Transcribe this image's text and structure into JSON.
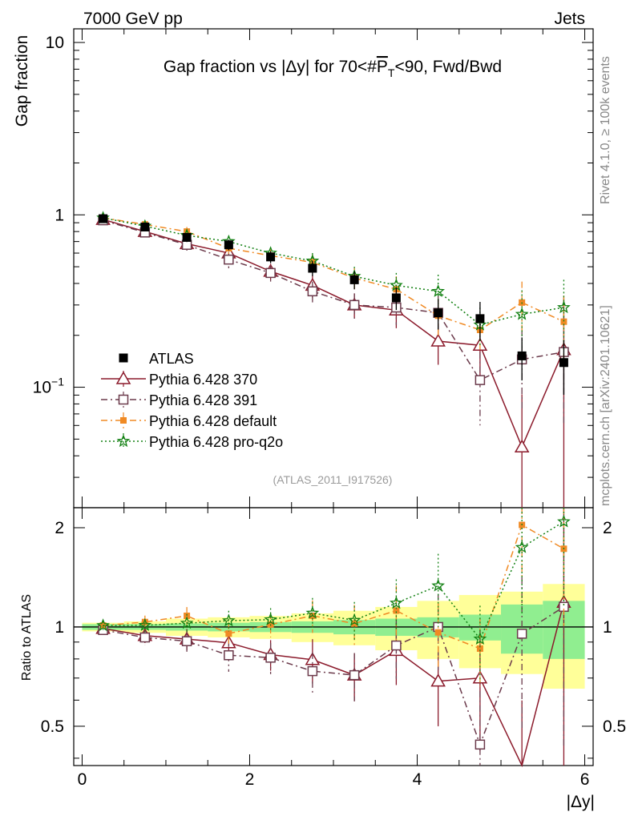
{
  "header": {
    "left": "7000 GeV pp",
    "right": "Jets"
  },
  "side_labels": {
    "rivet": "Rivet 4.1.0, ≥ 100k events",
    "mcplots": "mcplots.cern.ch [arXiv:2401.10621]"
  },
  "chart_data": {
    "type": "scatter",
    "title": "Gap fraction vs |Δy| for 70<#P̅T<90, Fwd/Bwd",
    "title_parts": {
      "pre": "Gap fraction vs |Δy| for 70<#",
      "pbar": "P",
      "sub": "T",
      "post": "<90, Fwd/Bwd"
    },
    "analysis_id": "(ATLAS_2011_I917526)",
    "xlabel": "|Δy|",
    "ylabel_main": "Gap fraction",
    "ylabel_ratio": "Ratio to ATLAS",
    "xlim": [
      -0.1,
      6.1
    ],
    "ylim_main": [
      0.02,
      12
    ],
    "ylim_ratio": [
      0.38,
      2.3
    ],
    "yscale": "log",
    "x_ticks": [
      "0",
      "2",
      "4",
      "6"
    ],
    "y_ticks_main": [
      "1",
      "10"
    ],
    "y_ticks_main_exp": [
      {
        "base": "10",
        "exp": "−1"
      }
    ],
    "y_ticks_ratio": [
      "0.5",
      "1",
      "2"
    ],
    "x": [
      0.25,
      0.75,
      1.25,
      1.75,
      2.25,
      2.75,
      3.25,
      3.75,
      4.25,
      4.75,
      5.25,
      5.75
    ],
    "x_edges": [
      0,
      0.5,
      1,
      1.5,
      2,
      2.5,
      3,
      3.5,
      4,
      4.5,
      5,
      5.5,
      6
    ],
    "data": {
      "name": "ATLAS",
      "values": [
        0.95,
        0.85,
        0.74,
        0.67,
        0.57,
        0.49,
        0.42,
        0.33,
        0.27,
        0.25,
        0.152,
        0.139
      ],
      "rel_err_stat": [
        0.02,
        0.02,
        0.025,
        0.03,
        0.035,
        0.04,
        0.05,
        0.06,
        0.07,
        0.09,
        0.17,
        0.2
      ],
      "rel_err_total": [
        0.03,
        0.04,
        0.06,
        0.07,
        0.08,
        0.1,
        0.12,
        0.15,
        0.2,
        0.25,
        0.28,
        0.35
      ]
    },
    "series": [
      {
        "name": "Pythia 6.428 370",
        "color": "#8b1a2b",
        "line": "solid",
        "marker": "triangle-open",
        "values": [
          0.94,
          0.8,
          0.68,
          0.6,
          0.47,
          0.39,
          0.3,
          0.28,
          0.185,
          0.175,
          0.045,
          0.165
        ],
        "errors": [
          0.03,
          0.04,
          0.05,
          0.05,
          0.05,
          0.06,
          0.05,
          0.06,
          0.05,
          0.07,
          0.046,
          0.165
        ]
      },
      {
        "name": "Pythia 6.428 391",
        "color": "#6b3a4b",
        "line": "dashdot",
        "marker": "square-open",
        "values": [
          0.93,
          0.79,
          0.67,
          0.55,
          0.46,
          0.36,
          0.3,
          0.29,
          0.27,
          0.11,
          0.145,
          0.16
        ],
        "errors": [
          0.03,
          0.04,
          0.05,
          0.06,
          0.05,
          0.05,
          0.05,
          0.06,
          0.07,
          0.05,
          0.07,
          0.1
        ]
      },
      {
        "name": "Pythia 6.428 default",
        "color": "#f08a24",
        "line": "dashdot",
        "marker": "square-filled",
        "values": [
          0.96,
          0.88,
          0.8,
          0.64,
          0.58,
          0.53,
          0.43,
          0.37,
          0.26,
          0.215,
          0.31,
          0.24
        ],
        "errors": [
          0.03,
          0.04,
          0.05,
          0.05,
          0.05,
          0.06,
          0.06,
          0.07,
          0.06,
          0.05,
          0.1,
          0.1
        ]
      },
      {
        "name": "Pythia 6.428 pro-q2o",
        "color": "#128012",
        "line": "dotted",
        "marker": "star",
        "values": [
          0.96,
          0.86,
          0.76,
          0.7,
          0.6,
          0.54,
          0.44,
          0.39,
          0.36,
          0.23,
          0.265,
          0.29
        ],
        "errors": [
          0.03,
          0.04,
          0.05,
          0.05,
          0.05,
          0.06,
          0.06,
          0.07,
          0.09,
          0.06,
          0.1,
          0.13
        ]
      }
    ],
    "legend_position": "bottom-left"
  }
}
